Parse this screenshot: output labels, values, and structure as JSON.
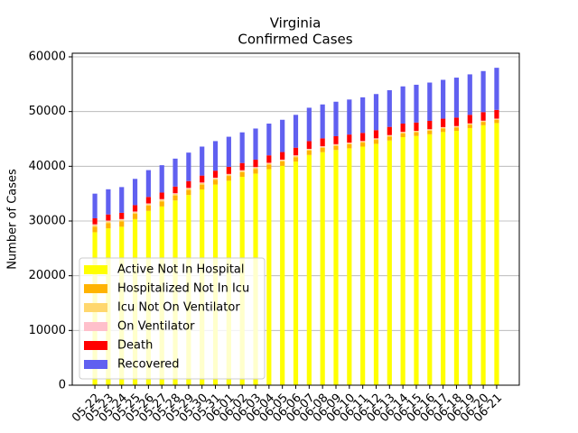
{
  "chart_data": {
    "type": "stacked_bar",
    "title": "Virginia",
    "subtitle": "Confirmed Cases",
    "y_label": "Number of Cases",
    "categories": [
      "05-22",
      "05-23",
      "05-24",
      "05-25",
      "05-26",
      "05-27",
      "05-28",
      "05-29",
      "05-30",
      "05-31",
      "06-01",
      "06-02",
      "06-03",
      "06-04",
      "06-05",
      "06-06",
      "06-07",
      "06-08",
      "06-09",
      "06-10",
      "06-11",
      "06-12",
      "06-13",
      "06-14",
      "06-15",
      "06-16",
      "06-17",
      "06-18",
      "06-19",
      "06-20",
      "06-21"
    ],
    "series": [
      {
        "name": "Active Not In Hospital",
        "color": "#ffff00",
        "values": [
          27950,
          28651,
          28953,
          30354,
          31855,
          32657,
          33758,
          34759,
          35761,
          36662,
          37363,
          38065,
          38666,
          39467,
          40069,
          40870,
          42071,
          42573,
          42974,
          43285,
          43597,
          44108,
          44719,
          45331,
          45542,
          45853,
          46265,
          46476,
          46987,
          47499,
          47900
        ]
      },
      {
        "name": "Hospitalized Not In Icu",
        "color": "#ffb300",
        "values": [
          1000,
          987,
          973,
          960,
          947,
          933,
          920,
          907,
          893,
          880,
          867,
          853,
          840,
          827,
          813,
          800,
          787,
          773,
          760,
          747,
          733,
          720,
          707,
          693,
          680,
          667,
          653,
          640,
          627,
          613,
          600
        ]
      },
      {
        "name": "Icu Not On Ventilator",
        "color": "#ffd76e",
        "values": [
          300,
          295,
          290,
          285,
          280,
          275,
          270,
          265,
          260,
          255,
          250,
          245,
          240,
          235,
          230,
          225,
          220,
          215,
          210,
          205,
          200,
          195,
          190,
          185,
          180,
          175,
          170,
          165,
          160,
          155,
          150
        ]
      },
      {
        "name": "On Ventilator",
        "color": "#ffc0cb",
        "values": [
          150,
          147,
          144,
          141,
          138,
          135,
          132,
          129,
          126,
          123,
          120,
          117,
          114,
          111,
          108,
          105,
          102,
          99,
          96,
          93,
          90,
          87,
          84,
          81,
          78,
          75,
          72,
          69,
          66,
          63,
          60
        ]
      },
      {
        "name": "Death",
        "color": "#ff0000",
        "values": [
          1100,
          1120,
          1140,
          1160,
          1180,
          1200,
          1220,
          1240,
          1260,
          1280,
          1300,
          1320,
          1340,
          1360,
          1380,
          1400,
          1420,
          1440,
          1460,
          1470,
          1480,
          1490,
          1500,
          1510,
          1520,
          1530,
          1540,
          1550,
          1560,
          1570,
          1590
        ]
      },
      {
        "name": "Recovered",
        "color": "#6060f0",
        "values": [
          4500,
          4600,
          4700,
          4800,
          4900,
          5000,
          5100,
          5200,
          5300,
          5400,
          5500,
          5600,
          5700,
          5800,
          5900,
          6000,
          6100,
          6200,
          6300,
          6400,
          6500,
          6600,
          6700,
          6800,
          6900,
          7000,
          7100,
          7300,
          7400,
          7500,
          7700
        ]
      }
    ],
    "ylim": [
      0,
      60660
    ],
    "yticks": [
      0,
      10000,
      20000,
      30000,
      40000,
      50000,
      60000
    ],
    "grid": true,
    "legend": "lower left"
  }
}
